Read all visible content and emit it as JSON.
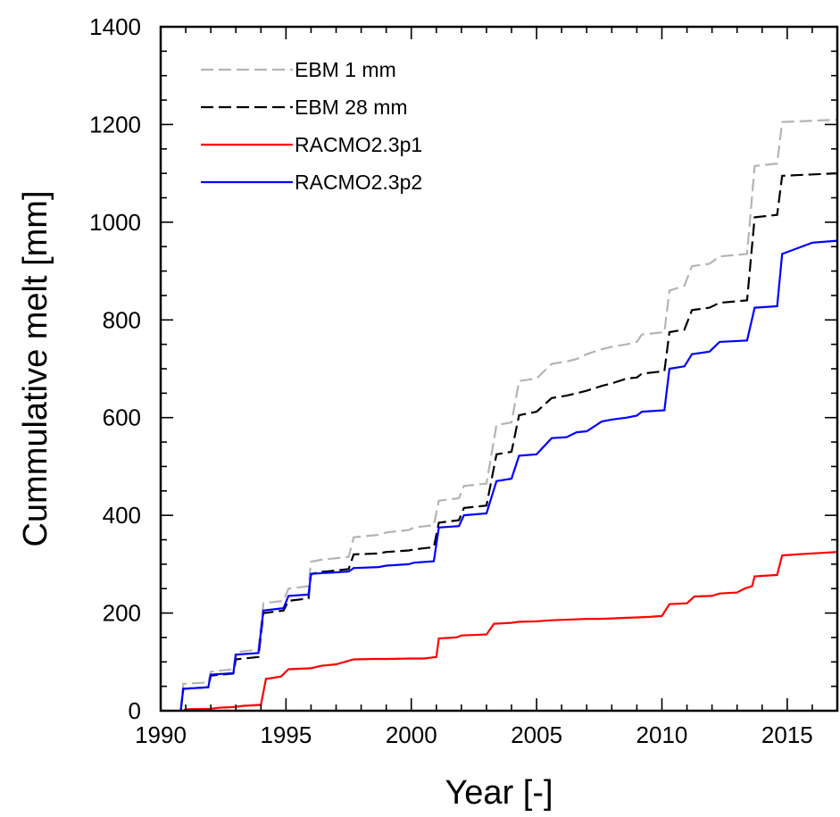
{
  "chart_data": {
    "type": "line",
    "title": "",
    "xlabel": "Year [-]",
    "ylabel": "Cummulative melt [mm]",
    "xlim": [
      1990,
      2017
    ],
    "ylim": [
      0,
      1400
    ],
    "xticks": [
      1990,
      1995,
      2000,
      2005,
      2010,
      2015
    ],
    "xtick_labels": [
      "1990",
      "1995",
      "2000",
      "2005",
      "2010",
      "2015"
    ],
    "yticks": [
      0,
      200,
      400,
      600,
      800,
      1000,
      1200,
      1400
    ],
    "ytick_labels": [
      "0",
      "200",
      "400",
      "600",
      "800",
      "1000",
      "1200",
      "1400"
    ],
    "grid": false,
    "legend_position": "top-left",
    "series": [
      {
        "name": "EBM 1 mm",
        "color": "#b4b4b4",
        "dash": "dashed",
        "x": [
          1990.8,
          1990.9,
          1991.9,
          1992.0,
          1992.9,
          1993.0,
          1993.9,
          1994.1,
          1994.9,
          1995.1,
          1995.9,
          1996.0,
          1996.5,
          1996.6,
          1997.5,
          1997.7,
          1998.7,
          1999.0,
          1999.9,
          2000.1,
          2000.9,
          2001.1,
          2001.9,
          2002.1,
          2003.0,
          2003.4,
          2004.0,
          2004.3,
          2005.0,
          2005.6,
          2006.2,
          2006.6,
          2007.0,
          2007.6,
          2008.0,
          2008.6,
          2009.0,
          2009.2,
          2010.1,
          2010.3,
          2010.9,
          2011.2,
          2011.9,
          2012.3,
          2013.4,
          2013.7,
          2014.6,
          2014.8,
          2017.0
        ],
        "y": [
          0,
          55,
          58,
          80,
          85,
          120,
          125,
          220,
          225,
          250,
          255,
          305,
          310,
          310,
          315,
          355,
          360,
          365,
          370,
          375,
          380,
          430,
          435,
          460,
          465,
          585,
          590,
          675,
          680,
          710,
          715,
          720,
          730,
          740,
          745,
          750,
          755,
          770,
          775,
          860,
          870,
          910,
          915,
          930,
          935,
          1115,
          1120,
          1205,
          1210
        ]
      },
      {
        "name": "EBM 28 mm",
        "color": "#000000",
        "dash": "dashed",
        "x": [
          1990.8,
          1990.9,
          1991.9,
          1992.0,
          1992.9,
          1993.0,
          1993.9,
          1994.1,
          1994.9,
          1995.1,
          1995.9,
          1996.0,
          1996.5,
          1996.6,
          1997.5,
          1997.7,
          1998.7,
          1999.0,
          1999.9,
          2000.1,
          2000.9,
          2001.1,
          2001.9,
          2002.1,
          2003.0,
          2003.4,
          2004.0,
          2004.3,
          2005.0,
          2005.6,
          2006.2,
          2006.6,
          2007.0,
          2007.6,
          2008.0,
          2008.6,
          2009.0,
          2009.2,
          2010.1,
          2010.3,
          2010.9,
          2011.2,
          2011.9,
          2012.3,
          2013.4,
          2013.7,
          2014.6,
          2014.8,
          2017.0
        ],
        "y": [
          0,
          45,
          48,
          72,
          76,
          105,
          110,
          200,
          205,
          225,
          230,
          280,
          285,
          285,
          290,
          320,
          322,
          325,
          328,
          330,
          335,
          385,
          390,
          415,
          420,
          525,
          530,
          605,
          612,
          640,
          645,
          650,
          655,
          665,
          670,
          680,
          682,
          690,
          695,
          775,
          780,
          820,
          825,
          835,
          840,
          1010,
          1015,
          1095,
          1100
        ]
      },
      {
        "name": "RACMO2.3p1",
        "color": "#ff0000",
        "dash": "solid",
        "x": [
          1990.9,
          1991.0,
          1992.0,
          1992.3,
          1993.0,
          1993.3,
          1994.0,
          1994.2,
          1994.8,
          1995.1,
          1996.0,
          1996.4,
          1997.0,
          1997.7,
          1998.5,
          1999.0,
          2000.0,
          2000.5,
          2001.0,
          2001.1,
          2001.8,
          2002.0,
          2003.0,
          2003.3,
          2004.0,
          2004.3,
          2005.0,
          2005.5,
          2006.0,
          2006.5,
          2007.0,
          2007.5,
          2008.0,
          2008.5,
          2009.0,
          2009.5,
          2010.0,
          2010.3,
          2011.0,
          2011.3,
          2012.0,
          2012.3,
          2013.0,
          2013.3,
          2013.6,
          2013.7,
          2014.6,
          2014.8,
          2016.0,
          2017.0
        ],
        "y": [
          0,
          3,
          4,
          6,
          8,
          10,
          12,
          65,
          70,
          85,
          87,
          92,
          95,
          105,
          106,
          106,
          107,
          107,
          110,
          148,
          150,
          154,
          156,
          178,
          180,
          182,
          183,
          185,
          186,
          187,
          188,
          188,
          189,
          190,
          191,
          192,
          194,
          218,
          220,
          234,
          235,
          240,
          242,
          250,
          255,
          275,
          278,
          318,
          322,
          325
        ]
      },
      {
        "name": "RACMO2.3p2",
        "color": "#0000ff",
        "dash": "solid",
        "x": [
          1990.8,
          1990.9,
          1991.9,
          1992.0,
          1992.9,
          1993.0,
          1993.9,
          1994.1,
          1994.9,
          1995.1,
          1995.9,
          1996.0,
          1996.5,
          1996.6,
          1997.5,
          1997.7,
          1998.7,
          1999.0,
          1999.9,
          2000.1,
          2000.9,
          2001.1,
          2001.9,
          2002.1,
          2003.0,
          2003.4,
          2004.0,
          2004.3,
          2005.0,
          2005.6,
          2006.2,
          2006.6,
          2007.0,
          2007.6,
          2008.0,
          2008.6,
          2009.0,
          2009.2,
          2010.1,
          2010.3,
          2010.9,
          2011.2,
          2011.9,
          2012.3,
          2013.4,
          2013.7,
          2014.6,
          2014.8,
          2016.0,
          2017.0
        ],
        "y": [
          0,
          45,
          48,
          74,
          77,
          115,
          118,
          205,
          210,
          235,
          238,
          280,
          282,
          282,
          285,
          292,
          294,
          297,
          300,
          303,
          306,
          375,
          378,
          400,
          404,
          470,
          475,
          522,
          525,
          558,
          560,
          570,
          572,
          592,
          596,
          600,
          604,
          612,
          615,
          700,
          705,
          730,
          735,
          755,
          758,
          825,
          828,
          935,
          958,
          962
        ]
      }
    ]
  }
}
